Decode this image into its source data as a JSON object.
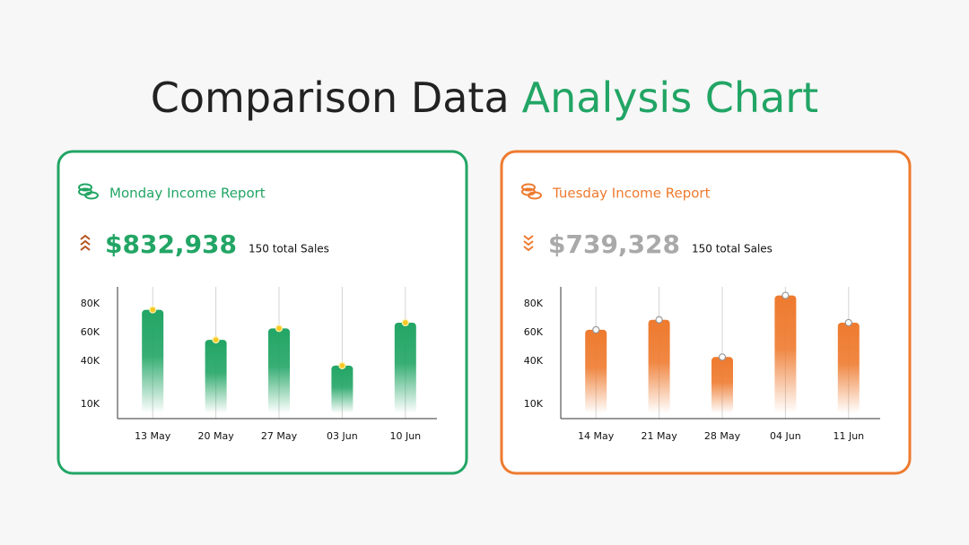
{
  "title": {
    "main": "Comparison Data",
    "highlight": "Analysis Chart"
  },
  "chart_data": [
    {
      "type": "bar",
      "title": "Monday Income Report",
      "headline": "$832,938",
      "subtitle": "150 total Sales",
      "color": "#22a565",
      "headline_color": "#22a565",
      "marker_color": "#f7c926",
      "trend": "up",
      "categories": [
        "13 May",
        "20 May",
        "27 May",
        "03 Jun",
        "10 Jun"
      ],
      "values": [
        76000,
        55000,
        63000,
        37000,
        67000
      ],
      "ylim": [
        0,
        92000
      ],
      "yticks": [
        {
          "value": 10000,
          "label": "10K"
        },
        {
          "value": 40000,
          "label": "40K"
        },
        {
          "value": 60000,
          "label": "60K"
        },
        {
          "value": 80000,
          "label": "80K"
        }
      ]
    },
    {
      "type": "bar",
      "title": "Tuesday Income Report",
      "headline": "$739,328",
      "subtitle": "150 total Sales",
      "color": "#ee7a2e",
      "headline_color": "#a9a9a9",
      "marker_color": "#ffffff",
      "trend": "down",
      "categories": [
        "14 May",
        "21 May",
        "28 May",
        "04 Jun",
        "11 Jun"
      ],
      "values": [
        62000,
        69000,
        43000,
        86000,
        67000
      ],
      "ylim": [
        0,
        92000
      ],
      "yticks": [
        {
          "value": 10000,
          "label": "10K"
        },
        {
          "value": 40000,
          "label": "40K"
        },
        {
          "value": 60000,
          "label": "60K"
        },
        {
          "value": 80000,
          "label": "80K"
        }
      ]
    }
  ]
}
